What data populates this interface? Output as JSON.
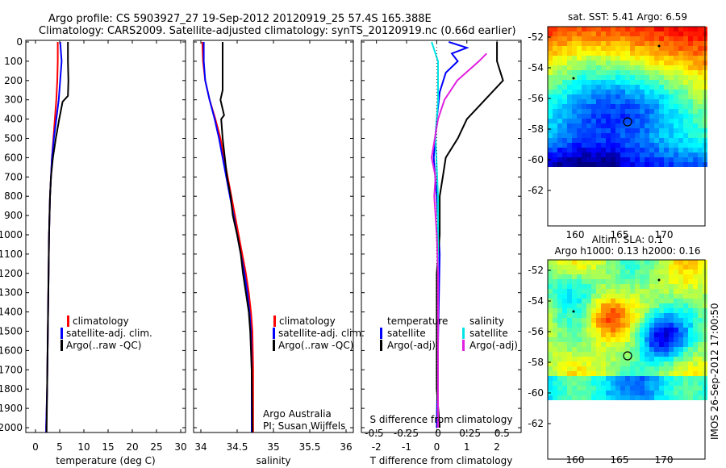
{
  "header": {
    "line1": "Argo profile: CS 5903927_27 19-Sep-2012 20120919_25 57.4S 165.388E",
    "line2": "Climatology: CARS2009. Satellite-adjusted climatology: synTS_20120919.nc (0.66d earlier)"
  },
  "depth_ticks": [
    "0",
    "100",
    "200",
    "300",
    "400",
    "500",
    "600",
    "700",
    "800",
    "900",
    "1000",
    "1100",
    "1200",
    "1300",
    "1400",
    "1500",
    "1600",
    "1700",
    "1800",
    "1900",
    "2000"
  ],
  "colors": {
    "climatology": "#ff0000",
    "satellite": "#0000ff",
    "argo": "#000000",
    "sal_satellite": "#00e5e5",
    "sal_argo": "#e020e0"
  },
  "panel1": {
    "xlabel": "temperature (deg C)",
    "xticks": [
      "0",
      "5",
      "10",
      "15",
      "20",
      "25",
      "30"
    ],
    "legend": [
      "climatology",
      "satellite-adj. clim.",
      "Argo(..raw -QC)"
    ]
  },
  "panel2": {
    "xlabel": "salinity",
    "xticks": [
      "34",
      "34.5",
      "35",
      "35.5",
      "36"
    ],
    "legend": [
      "climatology",
      "satellite-adj. clim.",
      "Argo(..raw -QC)"
    ],
    "note1": "Argo Australia",
    "note2": "PI: Susan Wijffels"
  },
  "panel3": {
    "xlabel": "T difference from climatology",
    "xticks": [
      "-2",
      "-1",
      "0",
      "1",
      "2"
    ],
    "top_label": "S difference from climatology",
    "top_ticks": [
      "-0.5",
      "-0.25",
      "0",
      "0.25",
      "0.5"
    ],
    "legend_t_title": "temperature",
    "legend_t": [
      "satellite",
      "Argo(-adj)"
    ],
    "legend_s_title": "salinity",
    "legend_s": [
      "satellite",
      "Argo(-adj)"
    ]
  },
  "map1": {
    "title": "sat. SST: 5.41  Argo: 6.59",
    "yticks": [
      "-52",
      "-54",
      "-56",
      "-58",
      "-60",
      "-62"
    ],
    "xticks": [
      "160",
      "165",
      "170"
    ]
  },
  "map2": {
    "title1": "Altim. SLA: 0.1",
    "title2": "Argo h1000: 0.13 h2000: 0.16",
    "yticks": [
      "-52",
      "-54",
      "-56",
      "-58",
      "-60",
      "-62"
    ],
    "xticks": [
      "160",
      "165",
      "170"
    ]
  },
  "stamp": "IMOS 26-Sep-2012 17:00:50",
  "chart_data": [
    {
      "type": "line",
      "xlabel": "temperature (deg C)",
      "xlim": [
        -2,
        31
      ],
      "ylim": [
        2050,
        0
      ],
      "series": [
        {
          "name": "climatology",
          "points": [
            [
              4.6,
              0
            ],
            [
              4.6,
              100
            ],
            [
              4.5,
              200
            ],
            [
              4.3,
              300
            ],
            [
              4.0,
              400
            ],
            [
              3.7,
              500
            ],
            [
              3.4,
              600
            ],
            [
              3.2,
              700
            ],
            [
              3.0,
              800
            ],
            [
              2.9,
              900
            ],
            [
              2.8,
              1000
            ],
            [
              2.7,
              1200
            ],
            [
              2.6,
              1400
            ],
            [
              2.5,
              1600
            ],
            [
              2.4,
              1800
            ],
            [
              2.2,
              2000
            ],
            [
              2.2,
              2050
            ]
          ]
        },
        {
          "name": "satellite-adj. clim.",
          "points": [
            [
              5.1,
              0
            ],
            [
              5.4,
              100
            ],
            [
              5.1,
              200
            ],
            [
              4.8,
              300
            ],
            [
              4.3,
              400
            ],
            [
              3.8,
              500
            ],
            [
              3.4,
              600
            ],
            [
              3.2,
              700
            ],
            [
              3.0,
              800
            ],
            [
              2.9,
              900
            ],
            [
              2.8,
              1000
            ],
            [
              2.7,
              1200
            ],
            [
              2.6,
              1400
            ],
            [
              2.5,
              1600
            ],
            [
              2.4,
              1800
            ],
            [
              2.2,
              2000
            ],
            [
              2.2,
              2050
            ]
          ]
        },
        {
          "name": "Argo(..raw -QC)",
          "points": [
            [
              6.7,
              0
            ],
            [
              6.7,
              100
            ],
            [
              6.8,
              200
            ],
            [
              6.7,
              280
            ],
            [
              5.6,
              310
            ],
            [
              4.9,
              400
            ],
            [
              4.2,
              500
            ],
            [
              3.6,
              600
            ],
            [
              3.2,
              700
            ],
            [
              3.0,
              800
            ],
            [
              2.9,
              900
            ],
            [
              2.8,
              1000
            ],
            [
              2.7,
              1200
            ],
            [
              2.6,
              1400
            ],
            [
              2.5,
              1600
            ],
            [
              2.4,
              1800
            ],
            [
              2.3,
              2000
            ],
            [
              2.3,
              2050
            ]
          ]
        }
      ]
    },
    {
      "type": "line",
      "xlabel": "salinity",
      "xlim": [
        33.9,
        36.1
      ],
      "ylim": [
        2050,
        0
      ],
      "series": [
        {
          "name": "climatology",
          "points": [
            [
              34.02,
              0
            ],
            [
              34.03,
              100
            ],
            [
              34.06,
              200
            ],
            [
              34.12,
              300
            ],
            [
              34.2,
              400
            ],
            [
              34.27,
              500
            ],
            [
              34.32,
              600
            ],
            [
              34.37,
              700
            ],
            [
              34.42,
              800
            ],
            [
              34.47,
              900
            ],
            [
              34.52,
              1000
            ],
            [
              34.57,
              1100
            ],
            [
              34.62,
              1200
            ],
            [
              34.66,
              1300
            ],
            [
              34.69,
              1400
            ],
            [
              34.71,
              1500
            ],
            [
              34.72,
              1700
            ],
            [
              34.72,
              2050
            ]
          ]
        },
        {
          "name": "satellite-adj. clim.",
          "points": [
            [
              34.04,
              0
            ],
            [
              34.04,
              100
            ],
            [
              34.06,
              200
            ],
            [
              34.12,
              300
            ],
            [
              34.19,
              400
            ],
            [
              34.25,
              500
            ],
            [
              34.3,
              600
            ],
            [
              34.35,
              700
            ],
            [
              34.4,
              800
            ],
            [
              34.45,
              900
            ],
            [
              34.5,
              1000
            ],
            [
              34.55,
              1100
            ],
            [
              34.6,
              1200
            ],
            [
              34.64,
              1300
            ],
            [
              34.67,
              1400
            ],
            [
              34.69,
              1500
            ],
            [
              34.7,
              1700
            ],
            [
              34.7,
              2050
            ]
          ]
        },
        {
          "name": "Argo(..raw -QC)",
          "points": [
            [
              34.3,
              0
            ],
            [
              34.3,
              250
            ],
            [
              34.27,
              300
            ],
            [
              34.32,
              380
            ],
            [
              34.28,
              400
            ],
            [
              34.3,
              500
            ],
            [
              34.33,
              600
            ],
            [
              34.36,
              700
            ],
            [
              34.41,
              800
            ],
            [
              34.44,
              900
            ],
            [
              34.5,
              1000
            ],
            [
              34.55,
              1100
            ],
            [
              34.58,
              1200
            ],
            [
              34.62,
              1300
            ],
            [
              34.66,
              1400
            ],
            [
              34.68,
              1500
            ],
            [
              34.7,
              1700
            ],
            [
              34.71,
              2050
            ]
          ]
        }
      ]
    },
    {
      "type": "line",
      "xlabel": "T difference from climatology",
      "xlim": [
        -2.5,
        2.8
      ],
      "ylim": [
        2050,
        0
      ],
      "series": [
        {
          "name": "satellite",
          "points": [
            [
              0.4,
              0
            ],
            [
              1.0,
              30
            ],
            [
              0.5,
              60
            ],
            [
              0.7,
              100
            ],
            [
              0.3,
              160
            ],
            [
              0.1,
              260
            ],
            [
              0.0,
              400
            ],
            [
              -0.1,
              600
            ],
            [
              0.0,
              800
            ],
            [
              0.1,
              1100
            ],
            [
              0.05,
              1500
            ],
            [
              0.0,
              2000
            ]
          ]
        },
        {
          "name": "Argo(-adj)",
          "points": [
            [
              2.0,
              0
            ],
            [
              2.0,
              100
            ],
            [
              2.2,
              200
            ],
            [
              1.6,
              300
            ],
            [
              1.0,
              400
            ],
            [
              0.7,
              500
            ],
            [
              0.3,
              600
            ],
            [
              0.2,
              700
            ],
            [
              0.1,
              800
            ],
            [
              0.1,
              1000
            ],
            [
              0.0,
              1200
            ],
            [
              0.0,
              1400
            ],
            [
              0.0,
              1600
            ],
            [
              0.0,
              1800
            ],
            [
              0.1,
              2000
            ]
          ]
        }
      ]
    },
    {
      "type": "line",
      "xlabel": "S difference from climatology",
      "xlim": [
        -0.6,
        0.65
      ],
      "ylim": [
        2050,
        0
      ],
      "series": [
        {
          "name": "satellite",
          "points": [
            [
              -0.05,
              0
            ],
            [
              0.0,
              100
            ],
            [
              0.0,
              300
            ],
            [
              -0.02,
              500
            ],
            [
              0.0,
              800
            ],
            [
              0.0,
              1200
            ],
            [
              0.0,
              2000
            ]
          ]
        },
        {
          "name": "Argo(-adj)",
          "points": [
            [
              0.38,
              60
            ],
            [
              0.32,
              100
            ],
            [
              0.15,
              200
            ],
            [
              0.05,
              300
            ],
            [
              0.0,
              400
            ],
            [
              -0.05,
              600
            ],
            [
              -0.02,
              700
            ],
            [
              -0.03,
              800
            ],
            [
              -0.01,
              1000
            ],
            [
              0.0,
              1200
            ],
            [
              0.0,
              2000
            ]
          ]
        }
      ]
    }
  ]
}
